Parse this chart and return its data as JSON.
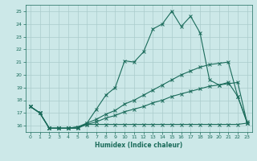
{
  "title": "",
  "xlabel": "Humidex (Indice chaleur)",
  "xlim": [
    -0.5,
    23.5
  ],
  "ylim": [
    15.5,
    25.5
  ],
  "yticks": [
    16,
    17,
    18,
    19,
    20,
    21,
    22,
    23,
    24,
    25
  ],
  "xticks": [
    0,
    1,
    2,
    3,
    4,
    5,
    6,
    7,
    8,
    9,
    10,
    11,
    12,
    13,
    14,
    15,
    16,
    17,
    18,
    19,
    20,
    21,
    22,
    23
  ],
  "bg_color": "#cce8e8",
  "line_color": "#1a6b5a",
  "grid_color": "#aacccc",
  "lines": [
    [
      17.5,
      17.0,
      15.8,
      15.8,
      15.8,
      15.8,
      16.2,
      17.3,
      18.4,
      19.0,
      21.1,
      21.0,
      21.8,
      23.6,
      24.0,
      25.0,
      23.8,
      24.6,
      23.3,
      19.6,
      19.2,
      19.4,
      18.3,
      16.3
    ],
    [
      17.5,
      17.0,
      15.8,
      15.8,
      15.8,
      15.8,
      16.1,
      16.1,
      16.1,
      16.1,
      16.1,
      16.1,
      16.1,
      16.1,
      16.1,
      16.1,
      16.1,
      16.1,
      16.1,
      16.1,
      16.1,
      16.1,
      16.1,
      16.2
    ],
    [
      17.5,
      17.0,
      15.8,
      15.8,
      15.8,
      15.9,
      16.1,
      16.3,
      16.6,
      16.8,
      17.1,
      17.3,
      17.5,
      17.8,
      18.0,
      18.3,
      18.5,
      18.7,
      18.9,
      19.1,
      19.2,
      19.3,
      19.4,
      16.2
    ],
    [
      17.5,
      17.0,
      15.8,
      15.8,
      15.8,
      15.9,
      16.2,
      16.5,
      16.9,
      17.2,
      17.7,
      18.0,
      18.4,
      18.8,
      19.2,
      19.6,
      20.0,
      20.3,
      20.6,
      20.8,
      20.9,
      21.0,
      18.3,
      16.2
    ]
  ]
}
